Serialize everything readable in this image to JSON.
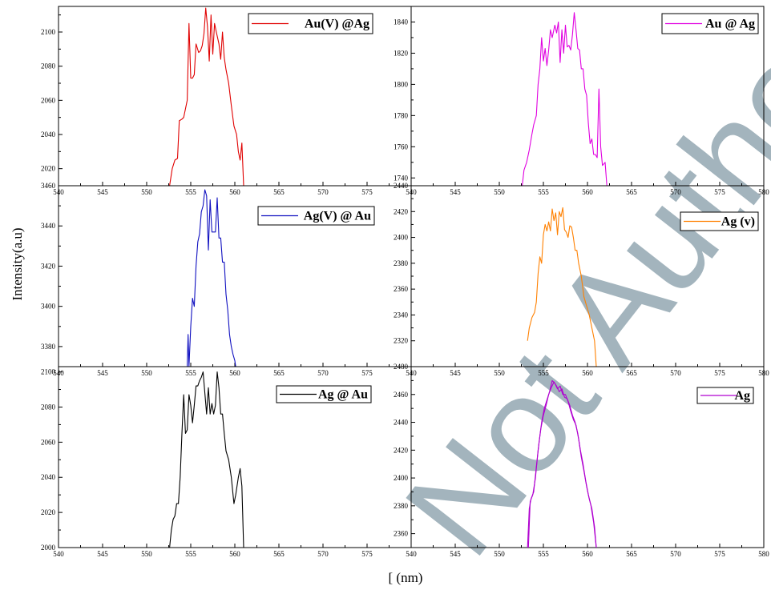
{
  "figure": {
    "ylabel": "Intensity(a.u)",
    "xlabel": "[ (nm)",
    "watermark": "Not Author Ver"
  },
  "chart_data": [
    {
      "type": "line",
      "panel": "top-left",
      "legend": "Au(V) @Ag",
      "color": "#e00000",
      "xlim": [
        540,
        580
      ],
      "ylim": [
        2010,
        2115
      ],
      "xticks": [
        540,
        545,
        550,
        555,
        560,
        565,
        570,
        575
      ],
      "yticks": [
        2020,
        2040,
        2060,
        2080,
        2100
      ],
      "x": [
        552.6,
        552.9,
        553.2,
        553.5,
        553.7,
        554.0,
        554.2,
        554.6,
        554.8,
        555.0,
        555.2,
        555.4,
        555.6,
        555.9,
        556.1,
        556.3,
        556.5,
        556.7,
        556.9,
        557.1,
        557.3,
        557.5,
        557.7,
        557.9,
        558.2,
        558.4,
        558.6,
        558.8,
        559.0,
        559.3,
        559.6,
        559.9,
        560.2,
        560.4,
        560.6,
        560.8,
        561.0
      ],
      "y": [
        2010,
        2020,
        2025,
        2026,
        2048,
        2049,
        2050,
        2060,
        2105,
        2073,
        2073,
        2075,
        2093,
        2088,
        2089,
        2092,
        2099,
        2114,
        2103,
        2083,
        2110,
        2087,
        2105,
        2100,
        2093,
        2084,
        2100,
        2085,
        2078,
        2070,
        2057,
        2045,
        2040,
        2030,
        2025,
        2035,
        2010
      ]
    },
    {
      "type": "line",
      "panel": "top-right",
      "legend": "Au @ Ag",
      "color": "#e000e0",
      "xlim": [
        540,
        580
      ],
      "ylim": [
        1735,
        1850
      ],
      "xticks": [
        540,
        545,
        550,
        555,
        560,
        565,
        570,
        575,
        580
      ],
      "yticks": [
        1740,
        1760,
        1780,
        1800,
        1820,
        1840
      ],
      "x": [
        552.6,
        552.8,
        553.1,
        553.4,
        553.7,
        553.9,
        554.2,
        554.4,
        554.6,
        554.8,
        555.0,
        555.2,
        555.4,
        555.6,
        555.8,
        556.0,
        556.3,
        556.5,
        556.7,
        556.9,
        557.1,
        557.3,
        557.5,
        557.7,
        557.9,
        558.1,
        558.3,
        558.5,
        558.7,
        558.9,
        559.1,
        559.3,
        559.5,
        559.7,
        559.9,
        560.1,
        560.3,
        560.5,
        560.7,
        560.9,
        561.1,
        561.3,
        561.5,
        561.7,
        562.0,
        562.2
      ],
      "y": [
        1735,
        1745,
        1750,
        1758,
        1768,
        1774,
        1780,
        1800,
        1810,
        1830,
        1815,
        1823,
        1812,
        1822,
        1835,
        1830,
        1838,
        1833,
        1840,
        1814,
        1835,
        1820,
        1838,
        1824,
        1825,
        1822,
        1832,
        1846,
        1835,
        1823,
        1822,
        1810,
        1810,
        1797,
        1793,
        1775,
        1762,
        1765,
        1755,
        1755,
        1753,
        1797,
        1760,
        1748,
        1750,
        1735
      ]
    },
    {
      "type": "line",
      "panel": "middle-left",
      "legend": "Ag(V) @ Au",
      "color": "#1010c0",
      "xlim": [
        540,
        580
      ],
      "ylim": [
        3370,
        3460
      ],
      "xticks": [
        540,
        545,
        550,
        555,
        560,
        565,
        570,
        575
      ],
      "yticks": [
        3380,
        3400,
        3420,
        3440,
        3460
      ],
      "x": [
        554.6,
        554.7,
        554.8,
        555.0,
        555.2,
        555.4,
        555.6,
        555.8,
        556.0,
        556.2,
        556.4,
        556.6,
        556.8,
        557.0,
        557.2,
        557.4,
        557.6,
        557.8,
        558.0,
        558.2,
        558.4,
        558.6,
        558.8,
        559.0,
        559.2,
        559.4,
        559.6,
        559.8,
        560.0,
        560.1
      ],
      "y": [
        3370,
        3386,
        3370,
        3390,
        3404,
        3400,
        3420,
        3432,
        3436,
        3447,
        3450,
        3458,
        3455,
        3428,
        3453,
        3437,
        3437,
        3437,
        3454,
        3434,
        3434,
        3422,
        3422,
        3406,
        3398,
        3386,
        3380,
        3376,
        3373,
        3370
      ]
    },
    {
      "type": "line",
      "panel": "middle-right",
      "legend": "Ag (v)",
      "color": "#ff8000",
      "xlim": [
        540,
        580
      ],
      "ylim": [
        2300,
        2440
      ],
      "xticks": [
        540,
        545,
        550,
        555,
        560,
        565,
        570,
        575,
        580
      ],
      "yticks": [
        2320,
        2340,
        2360,
        2380,
        2400,
        2420,
        2440
      ],
      "x": [
        553.2,
        553.4,
        553.7,
        554.0,
        554.2,
        554.4,
        554.6,
        554.8,
        555.0,
        555.2,
        555.4,
        555.6,
        555.8,
        556.0,
        556.2,
        556.4,
        556.6,
        556.8,
        557.0,
        557.2,
        557.4,
        557.6,
        557.8,
        558.0,
        558.2,
        558.4,
        558.6,
        558.8,
        559.0,
        559.3,
        559.6,
        559.9,
        560.2,
        560.5,
        560.8,
        561.0
      ],
      "y": [
        2320,
        2330,
        2338,
        2342,
        2350,
        2372,
        2385,
        2380,
        2402,
        2410,
        2405,
        2412,
        2405,
        2422,
        2413,
        2419,
        2402,
        2420,
        2416,
        2423,
        2406,
        2404,
        2400,
        2409,
        2408,
        2400,
        2390,
        2390,
        2380,
        2370,
        2354,
        2347,
        2340,
        2330,
        2320,
        2300
      ]
    },
    {
      "type": "line",
      "panel": "bottom-left",
      "legend": "Ag @ Au",
      "color": "#000000",
      "xlim": [
        540,
        580
      ],
      "ylim": [
        2000,
        2103
      ],
      "xticks": [
        540,
        545,
        550,
        555,
        560,
        565,
        570,
        575
      ],
      "yticks": [
        2000,
        2020,
        2040,
        2060,
        2080,
        2100
      ],
      "x": [
        552.6,
        552.8,
        553.0,
        553.2,
        553.4,
        553.6,
        553.8,
        554.0,
        554.2,
        554.4,
        554.6,
        554.8,
        555.0,
        555.2,
        555.4,
        555.6,
        555.8,
        556.0,
        556.2,
        556.4,
        556.6,
        556.8,
        557.0,
        557.2,
        557.4,
        557.6,
        557.8,
        558.0,
        558.2,
        558.4,
        558.6,
        558.8,
        559.0,
        559.3,
        559.6,
        559.9,
        560.1,
        560.4,
        560.6,
        560.8,
        561.0
      ],
      "y": [
        2000,
        2010,
        2016,
        2018,
        2025,
        2025,
        2040,
        2065,
        2087,
        2065,
        2067,
        2087,
        2081,
        2071,
        2081,
        2092,
        2092,
        2095,
        2097,
        2100,
        2088,
        2076,
        2091,
        2076,
        2082,
        2076,
        2081,
        2100,
        2091,
        2076,
        2076,
        2065,
        2055,
        2050,
        2040,
        2025,
        2030,
        2040,
        2045,
        2035,
        2000
      ]
    },
    {
      "type": "line",
      "panel": "bottom-right",
      "legend": "Ag",
      "color": "#b000d0",
      "xlim": [
        540,
        580
      ],
      "ylim": [
        2350,
        2480
      ],
      "xticks": [
        540,
        545,
        550,
        555,
        560,
        565,
        570,
        575,
        580
      ],
      "yticks": [
        2360,
        2380,
        2400,
        2420,
        2440,
        2460,
        2480
      ],
      "series": [
        {
          "x": [
            553.2,
            553.4,
            553.6,
            553.9,
            554.2,
            554.5,
            554.8,
            555.1,
            555.4,
            555.7,
            556.0,
            556.3,
            556.6,
            556.9,
            557.2,
            557.5,
            557.8,
            558.1,
            558.4,
            558.7,
            559.0,
            559.3,
            559.6,
            559.9,
            560.2,
            560.5,
            560.8,
            561.0
          ],
          "y": [
            2350,
            2378,
            2385,
            2390,
            2408,
            2425,
            2440,
            2450,
            2456,
            2462,
            2470,
            2468,
            2464,
            2466,
            2460,
            2460,
            2455,
            2448,
            2442,
            2438,
            2428,
            2415,
            2405,
            2394,
            2385,
            2378,
            2365,
            2350
          ]
        },
        {
          "x": [
            553.3,
            553.5,
            553.8,
            554.1,
            554.4,
            554.7,
            555.0,
            555.3,
            555.6,
            555.9,
            556.2,
            556.5,
            556.8,
            557.1,
            557.4,
            557.7,
            558.0,
            558.3,
            558.6,
            558.9,
            559.2,
            559.5,
            559.8,
            560.1,
            560.4,
            560.7,
            561.0
          ],
          "y": [
            2350,
            2383,
            2388,
            2400,
            2420,
            2435,
            2445,
            2452,
            2460,
            2465,
            2469,
            2466,
            2462,
            2464,
            2458,
            2457,
            2452,
            2445,
            2440,
            2432,
            2420,
            2410,
            2398,
            2388,
            2380,
            2368,
            2350
          ]
        }
      ]
    }
  ]
}
